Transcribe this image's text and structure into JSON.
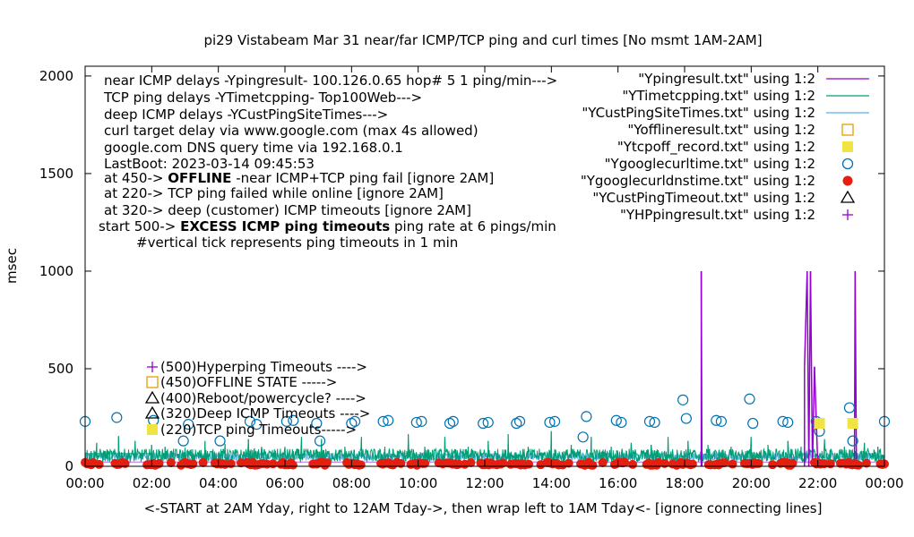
{
  "chart_data": {
    "type": "line",
    "title": "pi29 Vistabeam Mar 31  near/far ICMP/TCP ping and curl times [No msmt 1AM-2AM]",
    "xlabel": "<-START at 2AM Yday, right to 12AM Tday->, then wrap left to 1AM Tday<- [ignore connecting lines]",
    "ylabel": "msec",
    "xlim": [
      0,
      24
    ],
    "ylim": [
      0,
      2050
    ],
    "x_ticks": [
      {
        "value": 0,
        "label": "00:00"
      },
      {
        "value": 2,
        "label": "02:00"
      },
      {
        "value": 4,
        "label": "04:00"
      },
      {
        "value": 6,
        "label": "06:00"
      },
      {
        "value": 8,
        "label": "08:00"
      },
      {
        "value": 10,
        "label": "10:00"
      },
      {
        "value": 12,
        "label": "12:00"
      },
      {
        "value": 14,
        "label": "14:00"
      },
      {
        "value": 16,
        "label": "16:00"
      },
      {
        "value": 18,
        "label": "18:00"
      },
      {
        "value": 20,
        "label": "20:00"
      },
      {
        "value": 22,
        "label": "22:00"
      },
      {
        "value": 24,
        "label": "00:00"
      }
    ],
    "y_ticks": [
      {
        "value": 0,
        "label": "0"
      },
      {
        "value": 500,
        "label": "500"
      },
      {
        "value": 1000,
        "label": "1000"
      },
      {
        "value": 1500,
        "label": "1500"
      },
      {
        "value": 2000,
        "label": "2000"
      }
    ],
    "grid": false,
    "info_lines": [
      {
        "text": "near ICMP delays -Ypingresult- 100.126.0.65 hop# 5 1 ping/min--->",
        "x": 116,
        "y": 95
      },
      {
        "text": "TCP ping delays -YTimetcpping- Top100Web--->",
        "x": 116,
        "y": 114
      },
      {
        "text": "deep ICMP delays -YCustPingSiteTimes--->",
        "x": 116,
        "y": 133
      },
      {
        "text": "curl target delay via www.google.com (max 4s allowed)",
        "x": 116,
        "y": 151
      },
      {
        "text": "google.com DNS query time via 192.168.0.1",
        "x": 116,
        "y": 170
      },
      {
        "text": "LastBoot: 2023-03-14 09:45:53",
        "x": 116,
        "y": 188
      }
    ],
    "info_rich": [
      {
        "parts": [
          {
            "text": "at 450-> ",
            "bold": false
          },
          {
            "text": "OFFLINE",
            "bold": true
          },
          {
            "text": " -near ICMP+TCP ping fail [ignore 2AM]",
            "bold": false
          }
        ],
        "x": 116,
        "y": 204
      },
      {
        "parts": [
          {
            "text": "at 220-> TCP ping failed while online [ignore 2AM]",
            "bold": false
          }
        ],
        "x": 116,
        "y": 221
      },
      {
        "parts": [
          {
            "text": "at 320-> deep (customer) ICMP timeouts [ignore 2AM]",
            "bold": false
          }
        ],
        "x": 116,
        "y": 240
      },
      {
        "parts": [
          {
            "text": "start 500-> ",
            "bold": false
          },
          {
            "text": "EXCESS ICMP ping timeouts",
            "bold": true
          },
          {
            "text": "  ping rate at 6 pings/min",
            "bold": false
          }
        ],
        "x": 110,
        "y": 258
      },
      {
        "parts": [
          {
            "text": "#vertical tick represents ping timeouts in 1 min",
            "bold": false
          }
        ],
        "x": 152,
        "y": 276
      }
    ],
    "marker_notes": [
      {
        "text": "(500)Hyperping Timeouts ---->",
        "y_value": 500
      },
      {
        "text": "(450)OFFLINE STATE ----->",
        "y_value": 450
      },
      {
        "text": "(400)Reboot/powercycle? ---->",
        "y_value": 400
      },
      {
        "text": "(320)Deep ICMP Timeouts ---->",
        "y_value": 320
      },
      {
        "text": "(220)TCP ping Timeouts----->",
        "y_value": 220
      }
    ],
    "legend": {
      "position": "top-right",
      "entries": [
        {
          "label": "\"Ypingresult.txt\" using 1:2",
          "style": "line",
          "color": "#9400d3"
        },
        {
          "label": "\"YTimetcpping.txt\" using 1:2",
          "style": "line",
          "color": "#009e73"
        },
        {
          "label": "\"YCustPingSiteTimes.txt\" using 1:2",
          "style": "line",
          "color": "#56b4e9"
        },
        {
          "label": "\"Yofflineresult.txt\" using 1:2",
          "style": "open-square",
          "color": "#e69f00"
        },
        {
          "label": "\"Ytcpoff_record.txt\" using 1:2",
          "style": "filled-square",
          "color": "#f0e442"
        },
        {
          "label": "\"Ygooglecurltime.txt\" using 1:2",
          "style": "open-circle",
          "color": "#0072b2"
        },
        {
          "label": "\"Ygooglecurldnstime.txt\" using 1:2",
          "style": "filled-circle",
          "color": "#e51e10"
        },
        {
          "label": "\"YCustPingTimeout.txt\" using 1:2",
          "style": "open-triangle",
          "color": "#000000"
        },
        {
          "label": "\"YHPpingresult.txt\" using 1:2",
          "style": "plus",
          "color": "#9400d3"
        }
      ]
    },
    "series": [
      {
        "name": "\"Ypingresult.txt\" using 1:2",
        "style": "line",
        "color": "#9400d3",
        "baseline": 22,
        "points": [
          [
            18.5,
            0
          ],
          [
            18.5,
            1000
          ],
          [
            18.52,
            0
          ],
          [
            21.6,
            0
          ],
          [
            21.6,
            510
          ],
          [
            21.68,
            1000
          ],
          [
            21.73,
            0
          ],
          [
            21.78,
            1000
          ],
          [
            21.84,
            0
          ],
          [
            21.9,
            510
          ],
          [
            22.0,
            0
          ],
          [
            23.1,
            0
          ],
          [
            23.12,
            1000
          ],
          [
            23.16,
            0
          ]
        ]
      },
      {
        "name": "\"YTimetcpping.txt\" using 1:2",
        "style": "line",
        "color": "#009e73",
        "typical_range": [
          20,
          90
        ],
        "spikes": [
          [
            0.35,
            120
          ],
          [
            1.0,
            155
          ],
          [
            1.5,
            130
          ],
          [
            2.0,
            110
          ],
          [
            2.4,
            100
          ],
          [
            3.0,
            95
          ],
          [
            3.6,
            130
          ],
          [
            4.2,
            115
          ],
          [
            4.9,
            140
          ],
          [
            5.3,
            100
          ],
          [
            6.0,
            100
          ],
          [
            6.5,
            150
          ],
          [
            7.1,
            140
          ],
          [
            7.8,
            100
          ],
          [
            8.3,
            150
          ],
          [
            9.0,
            100
          ],
          [
            9.7,
            165
          ],
          [
            10.2,
            100
          ],
          [
            10.8,
            150
          ],
          [
            11.5,
            100
          ],
          [
            12.1,
            130
          ],
          [
            12.7,
            165
          ],
          [
            13.3,
            100
          ],
          [
            14.0,
            180
          ],
          [
            14.6,
            110
          ],
          [
            15.2,
            150
          ],
          [
            15.8,
            100
          ],
          [
            16.4,
            120
          ],
          [
            17.0,
            110
          ],
          [
            17.5,
            150
          ],
          [
            18.1,
            130
          ],
          [
            18.7,
            110
          ],
          [
            19.4,
            100
          ],
          [
            20.0,
            150
          ],
          [
            20.5,
            110
          ],
          [
            21.1,
            130
          ],
          [
            21.5,
            100
          ],
          [
            22.2,
            140
          ],
          [
            22.8,
            100
          ],
          [
            23.4,
            120
          ],
          [
            23.8,
            100
          ]
        ],
        "flat_segments": [
          [
            0.0,
            65,
            2.0,
            65
          ]
        ]
      },
      {
        "name": "\"YCustPingSiteTimes.txt\" using 1:2",
        "style": "line",
        "color": "#56b4e9",
        "typical_range": [
          30,
          70
        ]
      },
      {
        "name": "\"Yofflineresult.txt\" using 1:2",
        "style": "open-square",
        "color": "#e69f00",
        "points": []
      },
      {
        "name": "\"Ytcpoff_record.txt\" using 1:2",
        "style": "filled-square",
        "color": "#f0e442",
        "points": [
          [
            22.05,
            220
          ],
          [
            23.05,
            220
          ]
        ]
      },
      {
        "name": "\"Ygooglecurltime.txt\" using 1:2",
        "style": "open-circle",
        "color": "#0072b2",
        "points": [
          [
            0.0,
            230
          ],
          [
            0.95,
            250
          ],
          [
            2.05,
            235
          ],
          [
            2.95,
            130
          ],
          [
            3.1,
            215
          ],
          [
            4.05,
            130
          ],
          [
            4.95,
            230
          ],
          [
            5.15,
            215
          ],
          [
            6.05,
            230
          ],
          [
            6.25,
            235
          ],
          [
            6.95,
            220
          ],
          [
            7.05,
            130
          ],
          [
            8.0,
            220
          ],
          [
            8.1,
            230
          ],
          [
            8.95,
            230
          ],
          [
            9.1,
            235
          ],
          [
            9.95,
            225
          ],
          [
            10.1,
            230
          ],
          [
            10.95,
            220
          ],
          [
            11.05,
            230
          ],
          [
            11.95,
            220
          ],
          [
            12.1,
            225
          ],
          [
            12.95,
            220
          ],
          [
            13.05,
            230
          ],
          [
            13.95,
            225
          ],
          [
            14.1,
            230
          ],
          [
            14.95,
            150
          ],
          [
            15.05,
            255
          ],
          [
            15.95,
            235
          ],
          [
            16.1,
            225
          ],
          [
            16.95,
            230
          ],
          [
            17.1,
            225
          ],
          [
            17.95,
            340
          ],
          [
            18.05,
            245
          ],
          [
            18.95,
            235
          ],
          [
            19.1,
            230
          ],
          [
            19.95,
            345
          ],
          [
            20.05,
            220
          ],
          [
            20.95,
            230
          ],
          [
            21.1,
            225
          ],
          [
            21.95,
            230
          ],
          [
            22.05,
            180
          ],
          [
            22.95,
            300
          ],
          [
            23.05,
            130
          ],
          [
            24.0,
            230
          ]
        ]
      },
      {
        "name": "\"Ygooglecurldnstime.txt\" using 1:2",
        "style": "filled-circle",
        "color": "#e51e10",
        "points_step_hours": 0.06,
        "typical_range": [
          5,
          20
        ]
      },
      {
        "name": "\"YCustPingTimeout.txt\" using 1:2",
        "style": "open-triangle",
        "color": "#000000",
        "points": []
      },
      {
        "name": "\"YHPpingresult.txt\" using 1:2",
        "style": "plus",
        "color": "#9400d3",
        "points": []
      }
    ]
  }
}
